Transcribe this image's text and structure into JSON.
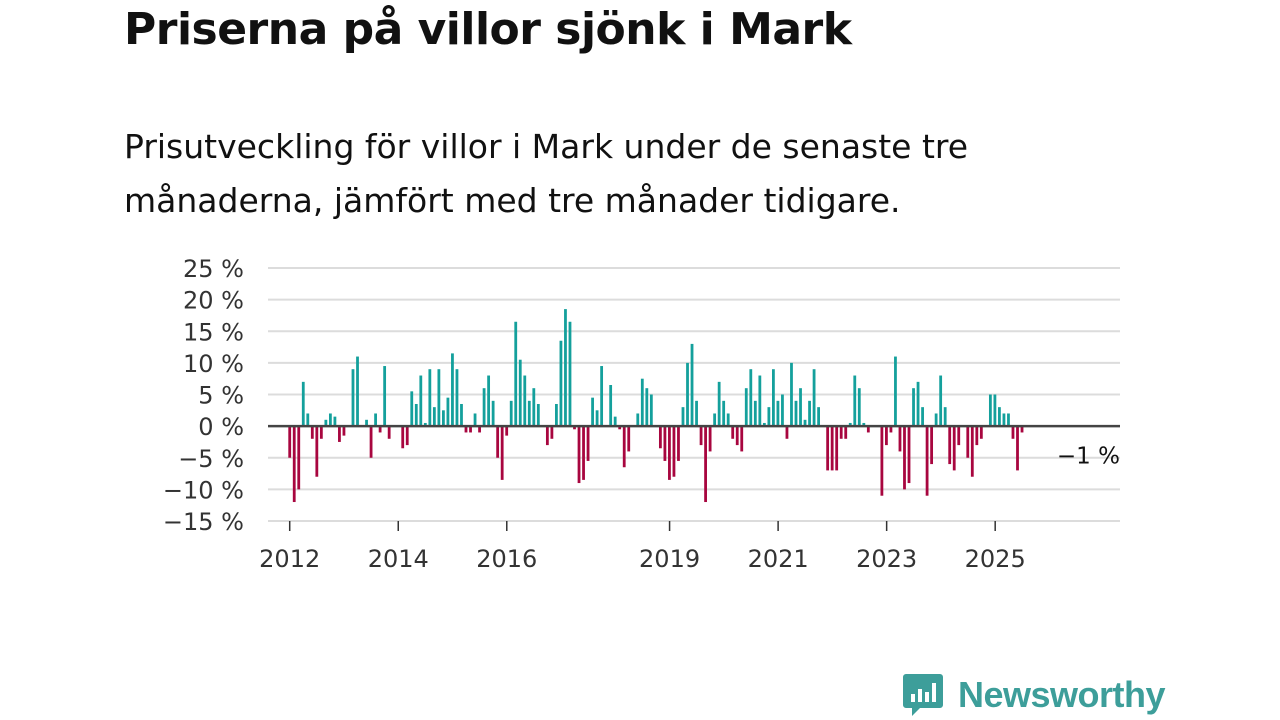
{
  "header": {
    "title": "Priserna på villor sjönk i Mark",
    "subtitle": "Prisutveckling för villor i Mark under de senaste tre månaderna, jämfört med tre månader tidigare."
  },
  "colors": {
    "positive": "#14a09c",
    "negative": "#a8063f",
    "grid": "#dcdcdc",
    "zero_line": "#444444",
    "brand": "#3d9e9a"
  },
  "chart_data": {
    "type": "bar",
    "title": "Priserna på villor sjönk i Mark",
    "xlabel": "",
    "ylabel": "",
    "ylim": [
      -15,
      25
    ],
    "y_ticks": [
      25,
      20,
      15,
      10,
      5,
      0,
      -5,
      -10,
      -15
    ],
    "y_tick_labels": [
      "25 %",
      "20 %",
      "15 %",
      "10 %",
      "5 %",
      "0 %",
      "−5 %",
      "−10 %",
      "−15 %"
    ],
    "x_range": [
      2011.6,
      2027.3
    ],
    "x_ticks": [
      2012,
      2014,
      2016,
      2019,
      2021,
      2023,
      2025
    ],
    "x_tick_labels": [
      "2012",
      "2014",
      "2016",
      "2019",
      "2021",
      "2023",
      "2025"
    ],
    "grid": true,
    "annotation": {
      "text": "−1 %",
      "x": 2026.1,
      "y": -1
    },
    "bar_step": 0.0833,
    "series": [
      {
        "name": "Prisutveckling",
        "x": 2012.0,
        "values": [
          -5,
          -12,
          -10,
          7,
          2,
          -2,
          -8,
          -2,
          1,
          2,
          1.5,
          -2.5,
          -1.5,
          0,
          9,
          11,
          0,
          1,
          -5,
          2,
          -1,
          9.5,
          -2,
          0,
          0,
          -3.5,
          -3,
          5.5,
          3.5,
          8,
          0.5,
          9,
          3,
          9,
          2.5,
          4.5,
          11.5,
          9,
          3.5,
          -1,
          -1,
          2,
          -1,
          6,
          8,
          4,
          -5,
          -8.5,
          -1.5,
          4,
          16.5,
          10.5,
          8,
          4,
          6,
          3.5,
          0,
          -3,
          -2,
          3.5,
          13.5,
          18.5,
          16.5,
          -0.5,
          -9,
          -8.5,
          -5.5,
          4.5,
          2.5,
          9.5,
          0,
          6.5,
          1.5,
          -0.5,
          -6.5,
          -4,
          0,
          2,
          7.5,
          6,
          5,
          0,
          -3.5,
          -5.5,
          -8.5,
          -8,
          -5.5,
          3,
          10,
          13,
          4,
          -3,
          -12,
          -4,
          2,
          7,
          4,
          2,
          -2,
          -3,
          -4,
          6,
          9,
          4,
          8,
          0.5,
          3,
          9,
          4,
          5,
          -2,
          10,
          4,
          6,
          1,
          4,
          9,
          3,
          0,
          -7,
          -7,
          -7,
          -2,
          -2,
          0.5,
          8,
          6,
          0.5,
          -1,
          0,
          0,
          -11,
          -3,
          -1,
          11,
          -4,
          -10,
          -9,
          6,
          7,
          3,
          -11,
          -6,
          2,
          8,
          3,
          -6,
          -7,
          -3,
          0,
          -5,
          -8,
          -3,
          -2,
          0,
          5,
          5,
          3,
          2,
          2,
          -2,
          -7,
          -1
        ]
      }
    ]
  },
  "brand": {
    "name": "Newsworthy",
    "icon": "bar-chart-speech-bubble-icon"
  }
}
